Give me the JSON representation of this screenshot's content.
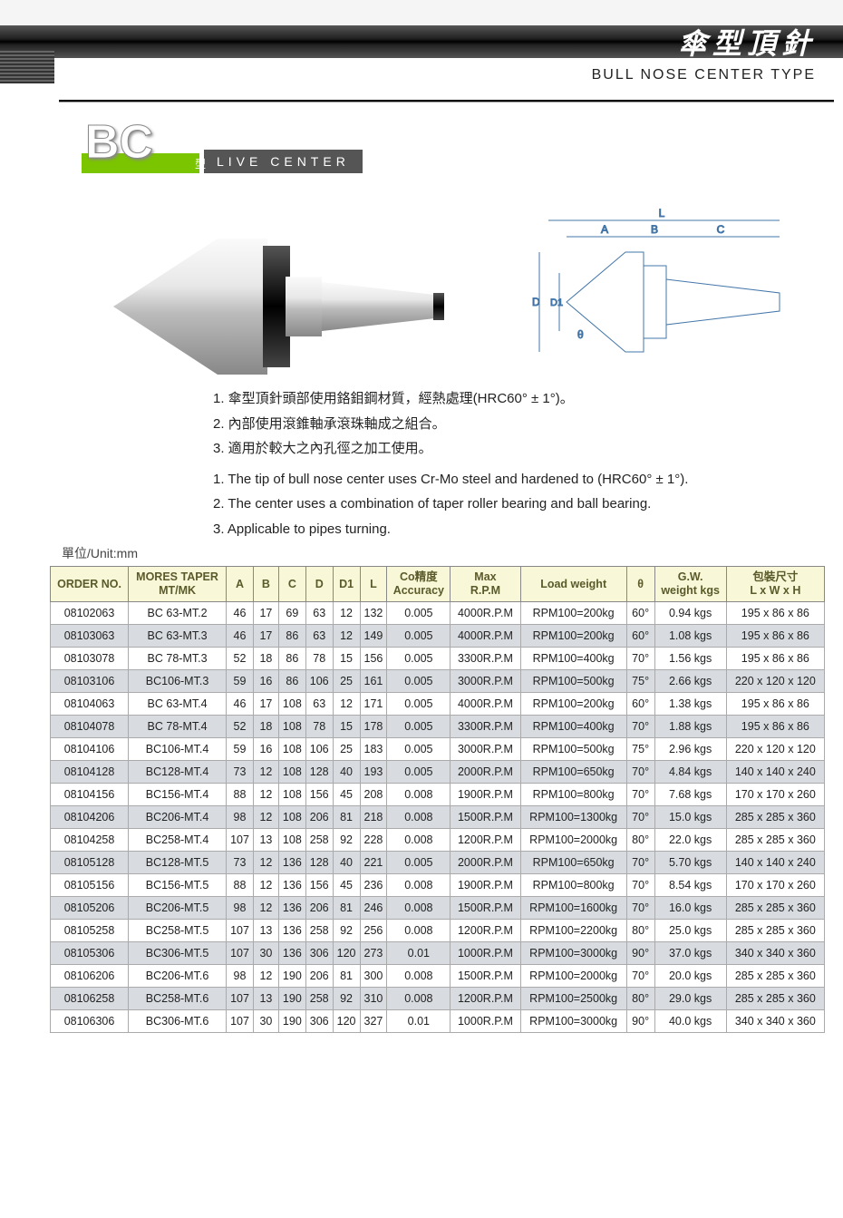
{
  "header": {
    "title_ch": "傘型頂針",
    "subtitle_en": "BULL NOSE CENTER TYPE"
  },
  "logo": {
    "bc": "BC",
    "type_ch": "型",
    "live_center": "LIVE CENTER"
  },
  "diagram_labels": {
    "L": "L",
    "A": "A",
    "B": "B",
    "C": "C",
    "D": "D",
    "D1": "D1",
    "theta": "θ"
  },
  "descriptions_ch": [
    "1. 傘型頂針頭部使用鉻鉬鋼材質，經熱處理(HRC60° ± 1°)。",
    "2. 內部使用滾錐軸承滾珠軸成之組合。",
    "3. 適用於較大之內孔徑之加工使用。"
  ],
  "descriptions_en": [
    "1. The tip of bull nose center uses Cr-Mo steel and hardened to (HRC60° ± 1°).",
    "2. The center uses a combination of taper roller bearing and ball bearing.",
    "3. Applicable to pipes turning."
  ],
  "unit_label": "單位/Unit:mm",
  "table": {
    "columns": [
      "ORDER NO.",
      "MORES TAPER\nMT/MK",
      "A",
      "B",
      "C",
      "D",
      "D1",
      "L",
      "Co精度\nAccuracy",
      "Max\nR.P.M",
      "Load weight",
      "θ",
      "G.W.\nweight kgs",
      "包裝尺寸\nL x W x H"
    ],
    "rows": [
      [
        "08102063",
        "BC 63-MT.2",
        "46",
        "17",
        "69",
        "63",
        "12",
        "132",
        "0.005",
        "4000R.P.M",
        "RPM100=200kg",
        "60°",
        "0.94 kgs",
        "195 x 86 x 86"
      ],
      [
        "08103063",
        "BC 63-MT.3",
        "46",
        "17",
        "86",
        "63",
        "12",
        "149",
        "0.005",
        "4000R.P.M",
        "RPM100=200kg",
        "60°",
        "1.08 kgs",
        "195 x 86 x 86"
      ],
      [
        "08103078",
        "BC 78-MT.3",
        "52",
        "18",
        "86",
        "78",
        "15",
        "156",
        "0.005",
        "3300R.P.M",
        "RPM100=400kg",
        "70°",
        "1.56 kgs",
        "195 x 86 x 86"
      ],
      [
        "08103106",
        "BC106-MT.3",
        "59",
        "16",
        "86",
        "106",
        "25",
        "161",
        "0.005",
        "3000R.P.M",
        "RPM100=500kg",
        "75°",
        "2.66 kgs",
        "220 x 120 x 120"
      ],
      [
        "08104063",
        "BC 63-MT.4",
        "46",
        "17",
        "108",
        "63",
        "12",
        "171",
        "0.005",
        "4000R.P.M",
        "RPM100=200kg",
        "60°",
        "1.38 kgs",
        "195 x 86 x 86"
      ],
      [
        "08104078",
        "BC 78-MT.4",
        "52",
        "18",
        "108",
        "78",
        "15",
        "178",
        "0.005",
        "3300R.P.M",
        "RPM100=400kg",
        "70°",
        "1.88 kgs",
        "195 x 86 x 86"
      ],
      [
        "08104106",
        "BC106-MT.4",
        "59",
        "16",
        "108",
        "106",
        "25",
        "183",
        "0.005",
        "3000R.P.M",
        "RPM100=500kg",
        "75°",
        "2.96 kgs",
        "220 x 120 x 120"
      ],
      [
        "08104128",
        "BC128-MT.4",
        "73",
        "12",
        "108",
        "128",
        "40",
        "193",
        "0.005",
        "2000R.P.M",
        "RPM100=650kg",
        "70°",
        "4.84 kgs",
        "140 x 140 x 240"
      ],
      [
        "08104156",
        "BC156-MT.4",
        "88",
        "12",
        "108",
        "156",
        "45",
        "208",
        "0.008",
        "1900R.P.M",
        "RPM100=800kg",
        "70°",
        "7.68 kgs",
        "170 x 170 x 260"
      ],
      [
        "08104206",
        "BC206-MT.4",
        "98",
        "12",
        "108",
        "206",
        "81",
        "218",
        "0.008",
        "1500R.P.M",
        "RPM100=1300kg",
        "70°",
        "15.0 kgs",
        "285 x 285 x 360"
      ],
      [
        "08104258",
        "BC258-MT.4",
        "107",
        "13",
        "108",
        "258",
        "92",
        "228",
        "0.008",
        "1200R.P.M",
        "RPM100=2000kg",
        "80°",
        "22.0 kgs",
        "285 x 285 x 360"
      ],
      [
        "08105128",
        "BC128-MT.5",
        "73",
        "12",
        "136",
        "128",
        "40",
        "221",
        "0.005",
        "2000R.P.M",
        "RPM100=650kg",
        "70°",
        "5.70 kgs",
        "140 x 140 x 240"
      ],
      [
        "08105156",
        "BC156-MT.5",
        "88",
        "12",
        "136",
        "156",
        "45",
        "236",
        "0.008",
        "1900R.P.M",
        "RPM100=800kg",
        "70°",
        "8.54 kgs",
        "170 x 170 x 260"
      ],
      [
        "08105206",
        "BC206-MT.5",
        "98",
        "12",
        "136",
        "206",
        "81",
        "246",
        "0.008",
        "1500R.P.M",
        "RPM100=1600kg",
        "70°",
        "16.0 kgs",
        "285 x 285 x 360"
      ],
      [
        "08105258",
        "BC258-MT.5",
        "107",
        "13",
        "136",
        "258",
        "92",
        "256",
        "0.008",
        "1200R.P.M",
        "RPM100=2200kg",
        "80°",
        "25.0 kgs",
        "285 x 285 x 360"
      ],
      [
        "08105306",
        "BC306-MT.5",
        "107",
        "30",
        "136",
        "306",
        "120",
        "273",
        "0.01",
        "1000R.P.M",
        "RPM100=3000kg",
        "90°",
        "37.0 kgs",
        "340 x 340 x 360"
      ],
      [
        "08106206",
        "BC206-MT.6",
        "98",
        "12",
        "190",
        "206",
        "81",
        "300",
        "0.008",
        "1500R.P.M",
        "RPM100=2000kg",
        "70°",
        "20.0 kgs",
        "285 x 285 x 360"
      ],
      [
        "08106258",
        "BC258-MT.6",
        "107",
        "13",
        "190",
        "258",
        "92",
        "310",
        "0.008",
        "1200R.P.M",
        "RPM100=2500kg",
        "80°",
        "29.0 kgs",
        "285 x 285 x 360"
      ],
      [
        "08106306",
        "BC306-MT.6",
        "107",
        "30",
        "190",
        "306",
        "120",
        "327",
        "0.01",
        "1000R.P.M",
        "RPM100=3000kg",
        "90°",
        "40.0 kgs",
        "340 x 340 x 360"
      ]
    ]
  },
  "colors": {
    "header_bg": "#f8f8d8",
    "row_alt": "#d8dce0",
    "green": "#7bc400"
  }
}
